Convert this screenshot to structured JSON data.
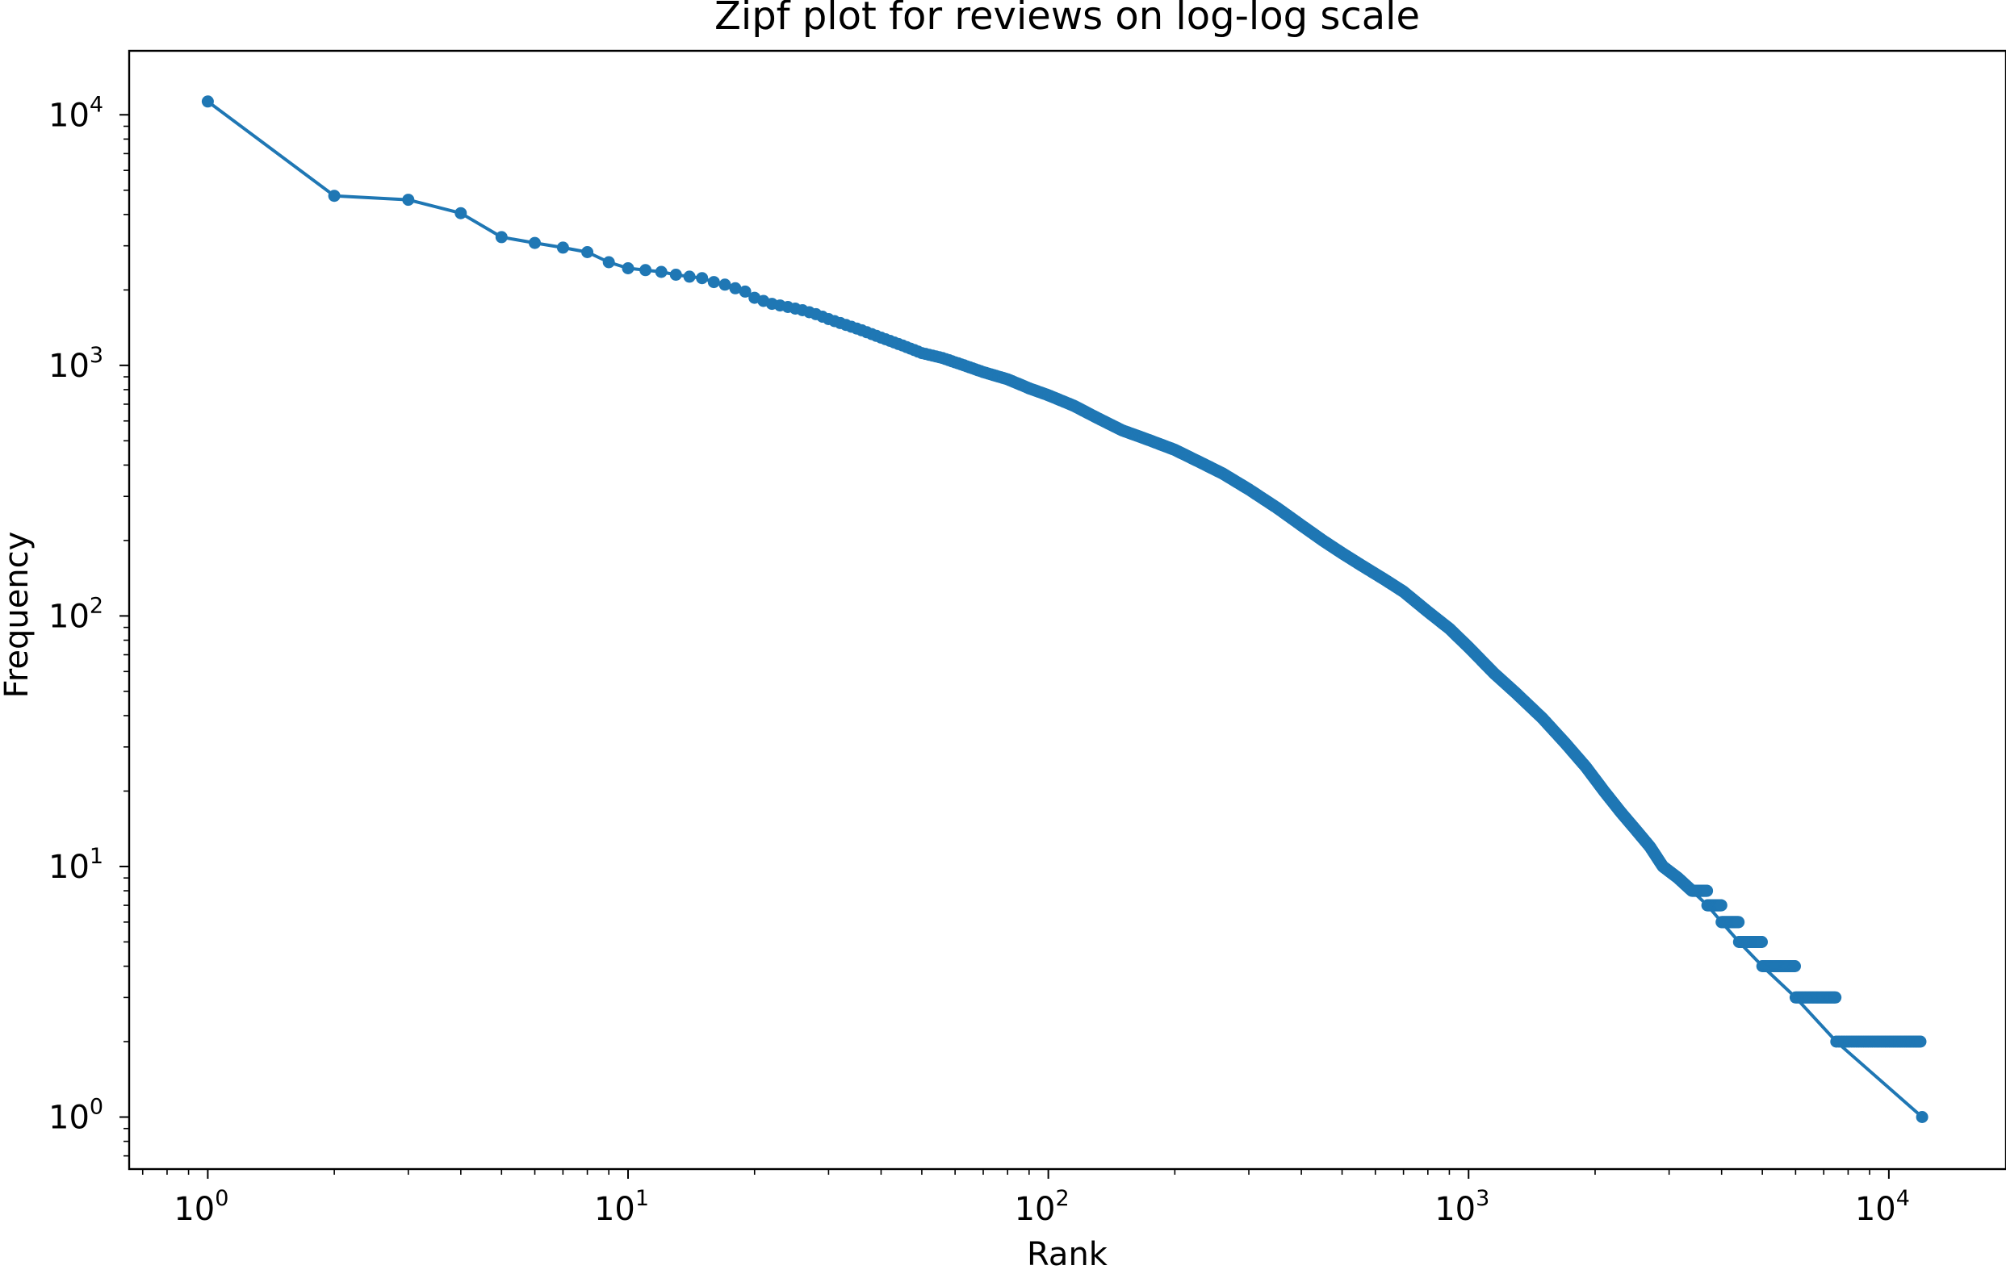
{
  "chart_data": {
    "type": "line",
    "title": "Zipf plot for reviews on log-log scale",
    "xlabel": "Rank",
    "ylabel": "Frequency",
    "xscale": "log",
    "yscale": "log",
    "xlim": [
      0.65,
      19000
    ],
    "ylim": [
      0.62,
      18000
    ],
    "grid": false,
    "legend": "none",
    "x_ticks": [
      {
        "base": "10",
        "exp": "0"
      },
      {
        "base": "10",
        "exp": "1"
      },
      {
        "base": "10",
        "exp": "2"
      },
      {
        "base": "10",
        "exp": "3"
      },
      {
        "base": "10",
        "exp": "4"
      }
    ],
    "y_ticks": [
      {
        "base": "10",
        "exp": "0"
      },
      {
        "base": "10",
        "exp": "1"
      },
      {
        "base": "10",
        "exp": "2"
      },
      {
        "base": "10",
        "exp": "3"
      },
      {
        "base": "10",
        "exp": "4"
      }
    ],
    "series": [
      {
        "color": "#1f77b4",
        "marker": "circle",
        "points": [
          [
            1,
            11300
          ],
          [
            2,
            4750
          ],
          [
            3,
            4580
          ],
          [
            4,
            4050
          ],
          [
            5,
            3250
          ],
          [
            6,
            3080
          ],
          [
            7,
            2950
          ],
          [
            8,
            2830
          ],
          [
            9,
            2580
          ],
          [
            10,
            2440
          ],
          [
            11,
            2400
          ],
          [
            12,
            2360
          ],
          [
            13,
            2300
          ],
          [
            14,
            2260
          ],
          [
            15,
            2230
          ],
          [
            16,
            2150
          ],
          [
            17,
            2100
          ],
          [
            18,
            2030
          ],
          [
            19,
            1970
          ],
          [
            20,
            1860
          ],
          [
            22,
            1760
          ],
          [
            24,
            1710
          ],
          [
            26,
            1660
          ],
          [
            28,
            1600
          ],
          [
            30,
            1530
          ],
          [
            33,
            1450
          ],
          [
            36,
            1380
          ],
          [
            40,
            1290
          ],
          [
            45,
            1200
          ],
          [
            50,
            1120
          ],
          [
            56,
            1070
          ],
          [
            63,
            1000
          ],
          [
            70,
            940
          ],
          [
            80,
            880
          ],
          [
            90,
            810
          ],
          [
            100,
            760
          ],
          [
            115,
            690
          ],
          [
            130,
            620
          ],
          [
            150,
            550
          ],
          [
            170,
            510
          ],
          [
            200,
            460
          ],
          [
            230,
            410
          ],
          [
            260,
            370
          ],
          [
            300,
            320
          ],
          [
            350,
            270
          ],
          [
            400,
            230
          ],
          [
            450,
            200
          ],
          [
            500,
            178
          ],
          [
            560,
            158
          ],
          [
            630,
            140
          ],
          [
            700,
            125
          ],
          [
            800,
            104
          ],
          [
            900,
            89
          ],
          [
            1000,
            75
          ],
          [
            1150,
            59
          ],
          [
            1300,
            49
          ],
          [
            1500,
            39
          ],
          [
            1700,
            31
          ],
          [
            1900,
            25
          ],
          [
            2100,
            20
          ],
          [
            2300,
            16.5
          ],
          [
            2500,
            14
          ],
          [
            2700,
            12
          ],
          [
            2900,
            10
          ],
          [
            3150,
            9
          ],
          [
            3400,
            8
          ],
          [
            3700,
            7
          ],
          [
            4000,
            6
          ],
          [
            4400,
            5
          ],
          [
            5000,
            4
          ],
          [
            6000,
            3
          ],
          [
            7500,
            2
          ],
          [
            12000,
            1
          ]
        ]
      }
    ]
  }
}
